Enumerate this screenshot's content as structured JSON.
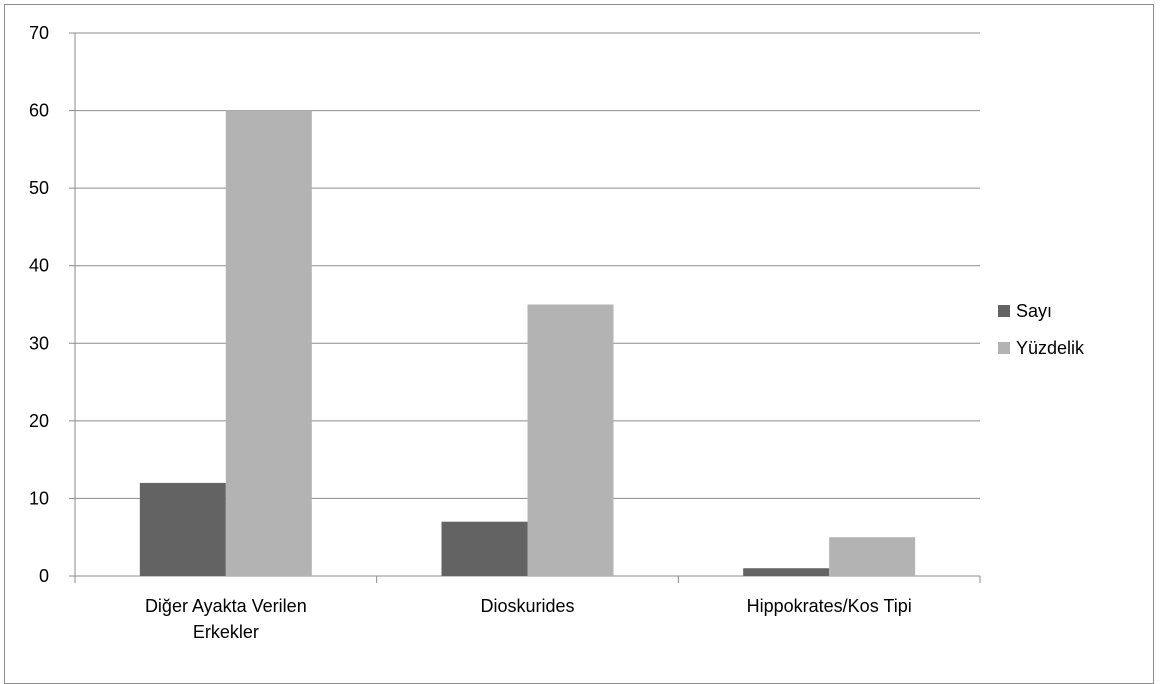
{
  "chart_data": {
    "type": "bar",
    "title": "",
    "xlabel": "",
    "ylabel": "",
    "categories": [
      [
        "Diğer Ayakta Verilen",
        "Erkekler"
      ],
      [
        "Dioskurides"
      ],
      [
        "Hippokrates/Kos Tipi"
      ]
    ],
    "series": [
      {
        "name": "Sayı",
        "values": [
          12,
          7,
          1
        ],
        "color": "#636363"
      },
      {
        "name": "Yüzdelik",
        "values": [
          60,
          35,
          5
        ],
        "color": "#b3b3b3"
      }
    ],
    "ylim": [
      0,
      70
    ],
    "yticks": [
      0,
      10,
      20,
      30,
      40,
      50,
      60,
      70
    ],
    "grid": true,
    "legend_position": "right"
  }
}
